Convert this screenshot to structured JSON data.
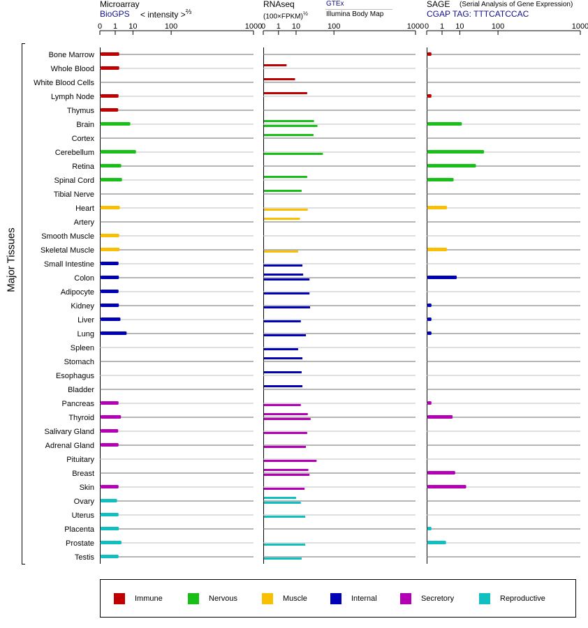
{
  "header": {
    "microarray": {
      "title": "Microarray",
      "source": "BioGPS",
      "unit_text": "< intensity >",
      "unit_exp": "⅔"
    },
    "rnaseq": {
      "title": "RNAseq",
      "unit_text": "(100×FPKM)",
      "unit_exp": "½",
      "source1": "GTEx",
      "source2": "Illumina Body Map"
    },
    "sage": {
      "title": "SAGE",
      "subtitle": "(Serial Analysis of Gene Expression)",
      "tag": "CGAP TAG: TTTCATCCAC"
    }
  },
  "side_label": "Major Tissues",
  "legend": [
    {
      "label": "Immune",
      "color": "#c00000"
    },
    {
      "label": "Nervous",
      "color": "#18bf18"
    },
    {
      "label": "Muscle",
      "color": "#f8c000"
    },
    {
      "label": "Internal",
      "color": "#0000b4"
    },
    {
      "label": "Secretory",
      "color": "#b400b4"
    },
    {
      "label": "Reproductive",
      "color": "#10c0c0"
    }
  ],
  "chart_data": {
    "type": "bar",
    "orientation": "horizontal",
    "x_scale": "power",
    "xtick_labels": [
      "0",
      "1",
      "10",
      "100",
      "1000"
    ],
    "xlim": [
      0,
      1000
    ],
    "categories": [
      "Bone Marrow",
      "Whole Blood",
      "White Blood Cells",
      "Lymph Node",
      "Thymus",
      "Brain",
      "Cortex",
      "Cerebellum",
      "Retina",
      "Spinal Cord",
      "Tibial Nerve",
      "Heart",
      "Artery",
      "Smooth Muscle",
      "Skeletal Muscle",
      "Small Intestine",
      "Colon",
      "Adipocyte",
      "Kidney",
      "Liver",
      "Lung",
      "Spleen",
      "Stomach",
      "Esophagus",
      "Bladder",
      "Pancreas",
      "Thyroid",
      "Salivary Gland",
      "Adrenal Gland",
      "Pituitary",
      "Breast",
      "Skin",
      "Ovary",
      "Uterus",
      "Placenta",
      "Prostate",
      "Testis"
    ],
    "groups": [
      "Immune",
      "Immune",
      "Immune",
      "Immune",
      "Immune",
      "Nervous",
      "Nervous",
      "Nervous",
      "Nervous",
      "Nervous",
      "Nervous",
      "Muscle",
      "Muscle",
      "Muscle",
      "Muscle",
      "Internal",
      "Internal",
      "Internal",
      "Internal",
      "Internal",
      "Internal",
      "Internal",
      "Internal",
      "Internal",
      "Internal",
      "Secretory",
      "Secretory",
      "Secretory",
      "Secretory",
      "Secretory",
      "Secretory",
      "Secretory",
      "Reproductive",
      "Reproductive",
      "Reproductive",
      "Reproductive",
      "Reproductive"
    ],
    "panels": [
      {
        "name": "Microarray",
        "values": [
          2.0,
          2.0,
          null,
          1.8,
          1.7,
          7.8,
          null,
          13,
          2.7,
          3.0,
          null,
          2.2,
          null,
          2.0,
          2.1,
          1.8,
          1.9,
          1.8,
          1.9,
          2.4,
          5.3,
          null,
          null,
          null,
          null,
          1.8,
          2.6,
          1.7,
          1.8,
          null,
          null,
          1.8,
          1.4,
          1.8,
          1.9,
          2.8,
          1.8
        ]
      },
      {
        "name": "RNAseq GTEx",
        "values": [
          null,
          3.6,
          9.1,
          24,
          null,
          37,
          36,
          null,
          null,
          24,
          16,
          null,
          14,
          null,
          null,
          null,
          18,
          null,
          null,
          null,
          null,
          null,
          17,
          16,
          17,
          null,
          25,
          null,
          null,
          null,
          26,
          null,
          10,
          null,
          null,
          null,
          null
        ]
      },
      {
        "name": "RNAseq Illumina Body Map",
        "values": [
          null,
          null,
          null,
          null,
          null,
          45,
          null,
          60,
          null,
          null,
          null,
          25,
          null,
          null,
          12,
          17,
          28,
          28,
          29,
          15,
          22,
          12,
          null,
          null,
          null,
          15,
          30,
          24,
          22,
          43,
          28,
          20,
          15,
          21,
          null,
          21,
          16
        ]
      },
      {
        "name": "SAGE",
        "values": [
          0.03,
          null,
          null,
          0.03,
          null,
          12,
          null,
          52,
          33,
          5.4,
          null,
          2.3,
          null,
          null,
          2.3,
          null,
          7.5,
          null,
          0.03,
          0.03,
          0.03,
          null,
          null,
          null,
          null,
          0.03,
          4.8,
          null,
          null,
          null,
          6.4,
          17,
          null,
          null,
          0.03,
          2.0,
          null
        ]
      }
    ]
  }
}
